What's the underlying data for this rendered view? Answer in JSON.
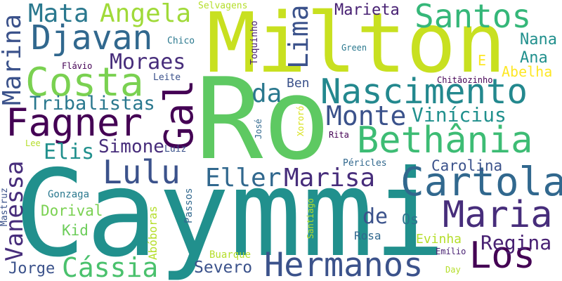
{
  "words": [
    {
      "text": "Caymmi",
      "color": "#21908d"
    },
    {
      "text": "Ro",
      "color": "#5ec962"
    },
    {
      "text": "Milton",
      "color": "#c8e020"
    },
    {
      "text": "Hermanos",
      "color": "#3b528b"
    },
    {
      "text": "Nascimento",
      "color": "#23888e"
    },
    {
      "text": "Bethânia",
      "color": "#3dbc74"
    },
    {
      "text": "Cartola",
      "color": "#31688e"
    },
    {
      "text": "Maria",
      "color": "#472d7b"
    },
    {
      "text": "Los",
      "color": "#440154"
    },
    {
      "text": "Fagner",
      "color": "#440154"
    },
    {
      "text": "Costa",
      "color": "#7ad151"
    },
    {
      "text": "Djavan",
      "color": "#31688e"
    },
    {
      "text": "Santos",
      "color": "#35b779"
    },
    {
      "text": "Gal",
      "color": "#440154"
    },
    {
      "text": "Lulu",
      "color": "#3b528b"
    },
    {
      "text": "Marisa",
      "color": "#472d7b"
    },
    {
      "text": "Eller",
      "color": "#31688e"
    },
    {
      "text": "Monte",
      "color": "#3b528b"
    },
    {
      "text": "Mata",
      "color": "#2a788e"
    },
    {
      "text": "Angela",
      "color": "#a0da39"
    },
    {
      "text": "Marina",
      "color": "#3b528b"
    },
    {
      "text": "Vanessa",
      "color": "#472d7b"
    },
    {
      "text": "Lima",
      "color": "#3b528b"
    },
    {
      "text": "Moraes",
      "color": "#472d7b"
    },
    {
      "text": "Tribalistas",
      "color": "#2a788e"
    },
    {
      "text": "Cássia",
      "color": "#4ac16d"
    },
    {
      "text": "Regina",
      "color": "#482173"
    },
    {
      "text": "Vinícius",
      "color": "#21908d"
    },
    {
      "text": "Simone",
      "color": "#472d7b"
    },
    {
      "text": "Elis",
      "color": "#21908d"
    },
    {
      "text": "Carolina",
      "color": "#3b528b"
    },
    {
      "text": "Severo",
      "color": "#3b528b"
    },
    {
      "text": "Jorge",
      "color": "#3b528b"
    },
    {
      "text": "Dorival",
      "color": "#7ad151"
    },
    {
      "text": "Kid",
      "color": "#6ccd5a"
    },
    {
      "text": "Marieta",
      "color": "#482173"
    },
    {
      "text": "Nana",
      "color": "#21908d"
    },
    {
      "text": "Ana",
      "color": "#21908d"
    },
    {
      "text": "Abelha",
      "color": "#fde725"
    },
    {
      "text": "E",
      "color": "#fde725"
    },
    {
      "text": "da",
      "color": "#2a788e"
    },
    {
      "text": "de",
      "color": "#3b528b"
    },
    {
      "text": "Ben",
      "color": "#3b528b"
    },
    {
      "text": "Os",
      "color": "#2c728e"
    },
    {
      "text": "Evinha",
      "color": "#b5de2b"
    },
    {
      "text": "Rosa",
      "color": "#31688e"
    },
    {
      "text": "Buarque",
      "color": "#b5de2b"
    },
    {
      "text": "Gonzaga",
      "color": "#2a788e"
    },
    {
      "text": "Abóboras",
      "color": "#b5de2b"
    },
    {
      "text": "Passos",
      "color": "#31688e"
    },
    {
      "text": "Mastruz",
      "color": "#3b528b"
    },
    {
      "text": "Lee",
      "color": "#b5de2b"
    },
    {
      "text": "Luiz",
      "color": "#3b528b"
    },
    {
      "text": "José",
      "color": "#31688e"
    },
    {
      "text": "Xororó",
      "color": "#d8e219"
    },
    {
      "text": "Rita",
      "color": "#440154"
    },
    {
      "text": "Péricles",
      "color": "#31688e"
    },
    {
      "text": "Santiago",
      "color": "#b5de2b"
    },
    {
      "text": "Emílio",
      "color": "#482173"
    },
    {
      "text": "Day",
      "color": "#b5de2b"
    },
    {
      "text": "Chitãozinho",
      "color": "#440154"
    },
    {
      "text": "Green",
      "color": "#2a788e"
    },
    {
      "text": "Toquinho",
      "color": "#482173"
    },
    {
      "text": "Chico",
      "color": "#2a788e"
    },
    {
      "text": "Flávio",
      "color": "#440154"
    },
    {
      "text": "Leite",
      "color": "#3b528b"
    },
    {
      "text": "Selvagens",
      "color": "#b5de2b"
    }
  ]
}
